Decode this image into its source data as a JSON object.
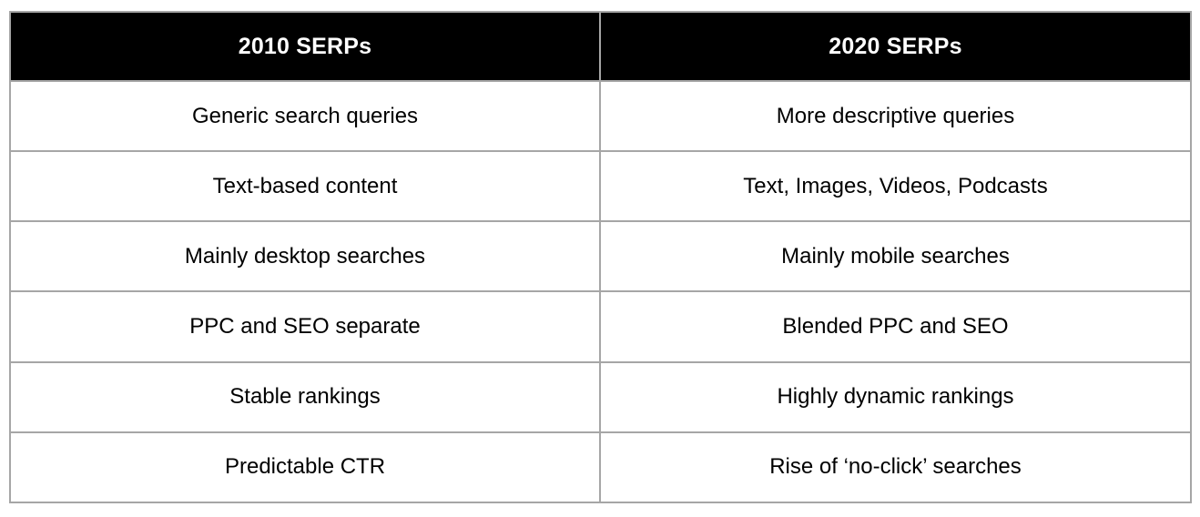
{
  "table": {
    "columns": [
      {
        "header": "2010 SERPs"
      },
      {
        "header": "2020 SERPs"
      }
    ],
    "rows": [
      [
        "Generic search queries",
        "More descriptive queries"
      ],
      [
        "Text-based content",
        "Text, Images, Videos, Podcasts"
      ],
      [
        "Mainly desktop searches",
        "Mainly mobile searches"
      ],
      [
        "PPC and SEO separate",
        "Blended PPC and SEO"
      ],
      [
        "Stable rankings",
        "Highly dynamic rankings"
      ],
      [
        "Predictable CTR",
        "Rise of ‘no-click’ searches"
      ]
    ],
    "colors": {
      "header_bg": "#000000",
      "header_text": "#ffffff",
      "body_bg": "#ffffff",
      "body_text": "#000000",
      "border": "#a6a6a6"
    }
  }
}
